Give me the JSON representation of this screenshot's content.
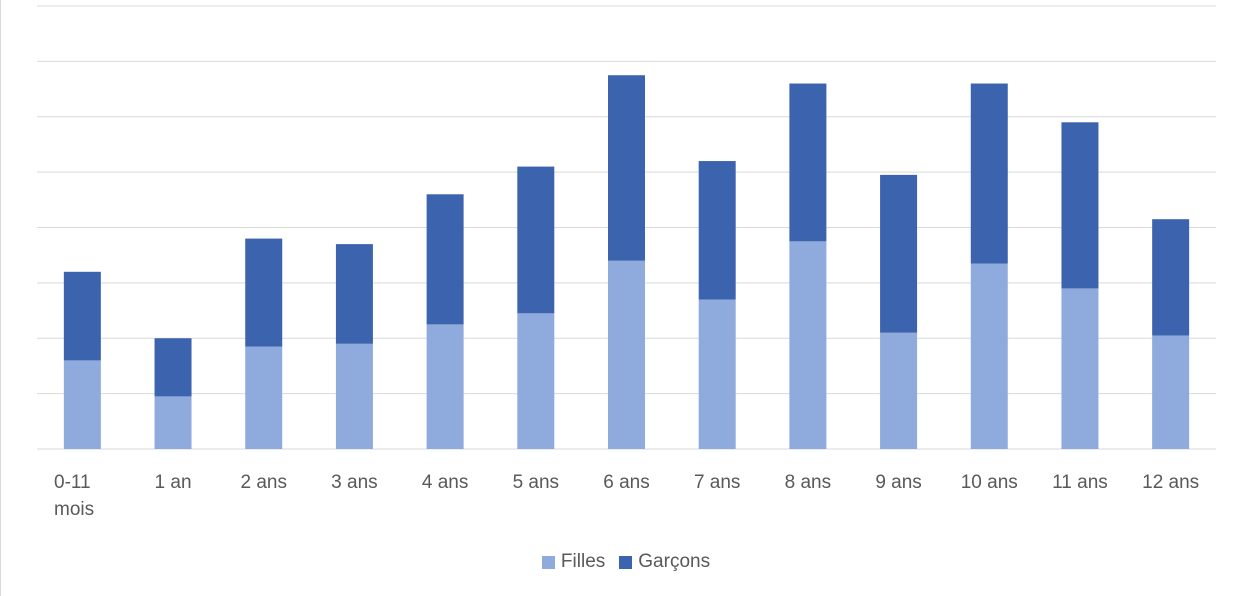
{
  "chart_data": {
    "type": "bar",
    "stacked": true,
    "categories": [
      "0-11 mois",
      "1 an",
      "2 ans",
      "3 ans",
      "4 ans",
      "5 ans",
      "6 ans",
      "7 ans",
      "8 ans",
      "9 ans",
      "10 ans",
      "11 ans",
      "12 ans"
    ],
    "series": [
      {
        "name": "Filles",
        "color": "#8faadc",
        "values": [
          1.6,
          0.95,
          1.85,
          1.9,
          2.25,
          2.45,
          3.4,
          2.7,
          3.75,
          2.1,
          3.35,
          2.9,
          2.05
        ]
      },
      {
        "name": "Garçons",
        "color": "#3c64ae",
        "values": [
          1.6,
          1.05,
          1.95,
          1.8,
          2.35,
          2.65,
          3.35,
          2.5,
          2.85,
          2.85,
          3.25,
          3.0,
          2.1
        ]
      }
    ],
    "ylim": [
      0,
      8
    ],
    "grid": true,
    "y_tick_labels_visible": false,
    "legend_position": "bottom"
  }
}
